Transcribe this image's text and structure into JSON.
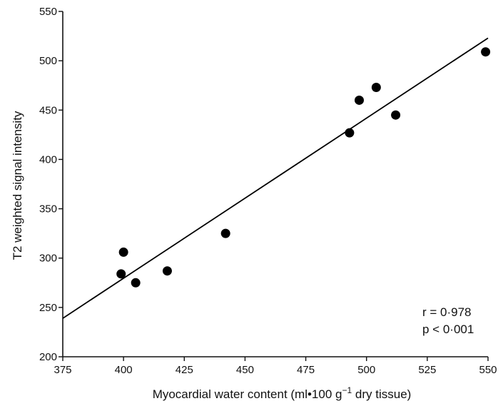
{
  "chart_data": {
    "type": "scatter",
    "xlabel": "Myocardial water content (ml•100 g",
    "xlabel_sup": "−1",
    "xlabel_tail": " dry tissue)",
    "ylabel": "T2 weighted signal intensity",
    "xlim": [
      375,
      550
    ],
    "ylim": [
      200,
      550
    ],
    "xticks": [
      375,
      400,
      425,
      450,
      475,
      500,
      525,
      550
    ],
    "yticks": [
      200,
      250,
      300,
      350,
      400,
      450,
      500,
      550
    ],
    "points": [
      {
        "x": 399,
        "y": 284
      },
      {
        "x": 400,
        "y": 306
      },
      {
        "x": 405,
        "y": 275
      },
      {
        "x": 418,
        "y": 287
      },
      {
        "x": 442,
        "y": 325
      },
      {
        "x": 493,
        "y": 427
      },
      {
        "x": 497,
        "y": 460
      },
      {
        "x": 504,
        "y": 473
      },
      {
        "x": 512,
        "y": 445
      },
      {
        "x": 549,
        "y": 509
      }
    ],
    "fit_line": {
      "x": [
        375,
        550
      ],
      "y": [
        239,
        523
      ]
    },
    "annotations": [
      "r = 0·978",
      "p < 0·001"
    ],
    "grid": false
  }
}
